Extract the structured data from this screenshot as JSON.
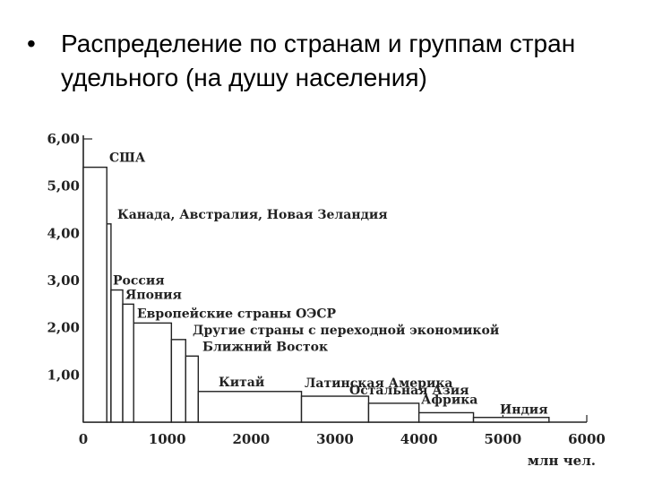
{
  "slide": {
    "bullet": "•",
    "text": "Распределение по странам и группам стран удельного (на душу населения)"
  },
  "chart_data": {
    "type": "bar",
    "variant": "variable-width",
    "xlabel": "млн чел.",
    "ylabel": "",
    "xlim": [
      0,
      6000
    ],
    "ylim": [
      0,
      6
    ],
    "x_ticks": [
      "0",
      "1000",
      "2000",
      "3000",
      "4000",
      "5000",
      "6000"
    ],
    "y_ticks": [
      "1,00",
      "2,00",
      "3,00",
      "4,00",
      "5,00",
      "6,00"
    ],
    "bars": [
      {
        "label": "США",
        "x0": 0,
        "x1": 280,
        "value": 5.4
      },
      {
        "label": "Канада, Австралия, Новая Зеландия",
        "x0": 280,
        "x1": 330,
        "value": 4.2
      },
      {
        "label": "Россия",
        "x0": 330,
        "x1": 470,
        "value": 2.8
      },
      {
        "label": "Япония",
        "x0": 470,
        "x1": 600,
        "value": 2.5
      },
      {
        "label": "Европейские страны ОЭСР",
        "x0": 600,
        "x1": 1050,
        "value": 2.1
      },
      {
        "label": "Другие страны с переходной экономикой",
        "x0": 1050,
        "x1": 1220,
        "value": 1.75
      },
      {
        "label": "Ближний Восток",
        "x0": 1220,
        "x1": 1370,
        "value": 1.4
      },
      {
        "label": "Китай",
        "x0": 1370,
        "x1": 2600,
        "value": 0.65
      },
      {
        "label": "Латинская Америка",
        "x0": 2600,
        "x1": 3400,
        "value": 0.55
      },
      {
        "label": "Остальная Азия",
        "x0": 3400,
        "x1": 4000,
        "value": 0.4
      },
      {
        "label": "Африка",
        "x0": 4000,
        "x1": 4650,
        "value": 0.2
      },
      {
        "label": "Индия",
        "x0": 4650,
        "x1": 5550,
        "value": 0.1
      }
    ],
    "grid": false,
    "legend": "none"
  }
}
